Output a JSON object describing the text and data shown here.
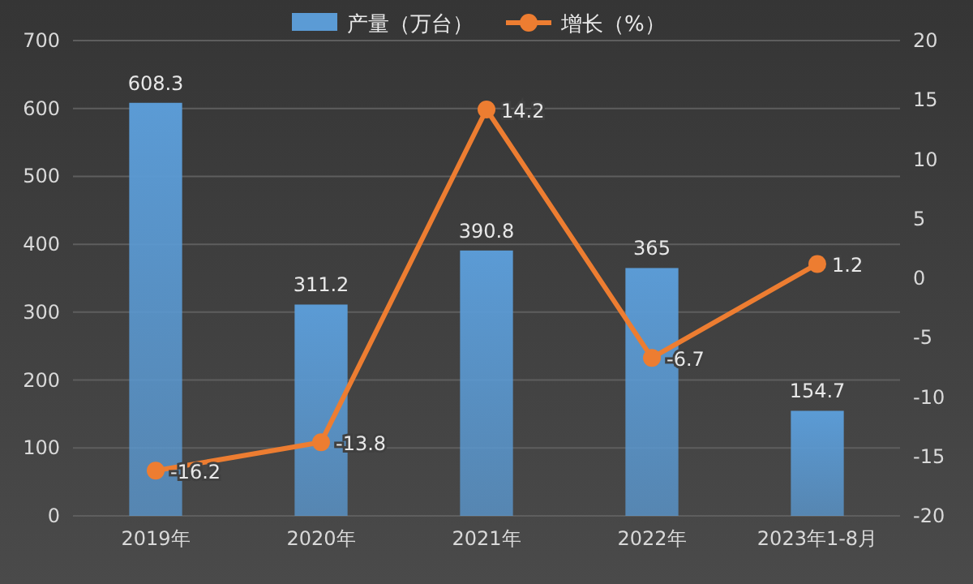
{
  "chart_data": {
    "type": "bar",
    "categories": [
      "2019年",
      "2020年",
      "2021年",
      "2022年",
      "2023年1-8月"
    ],
    "series": [
      {
        "name": "产量（万台）",
        "color": "#5b9bd5",
        "values": [
          608.3,
          311.2,
          390.8,
          365,
          154.7
        ]
      },
      {
        "name": "增长（%）",
        "type": "line",
        "axis": "y2",
        "color": "#ed7d31",
        "values": [
          -16.2,
          -13.8,
          14.2,
          -6.7,
          1.2
        ]
      }
    ],
    "ylim": [
      0,
      700
    ],
    "yticks": [
      0,
      100,
      200,
      300,
      400,
      500,
      600,
      700
    ],
    "y2lim": [
      -20,
      20
    ],
    "y2ticks": [
      -20,
      -15,
      -10,
      -5,
      0,
      5,
      10,
      15,
      20
    ],
    "data_labels": true,
    "grid": "y",
    "legend": "top",
    "marker": "circle"
  }
}
